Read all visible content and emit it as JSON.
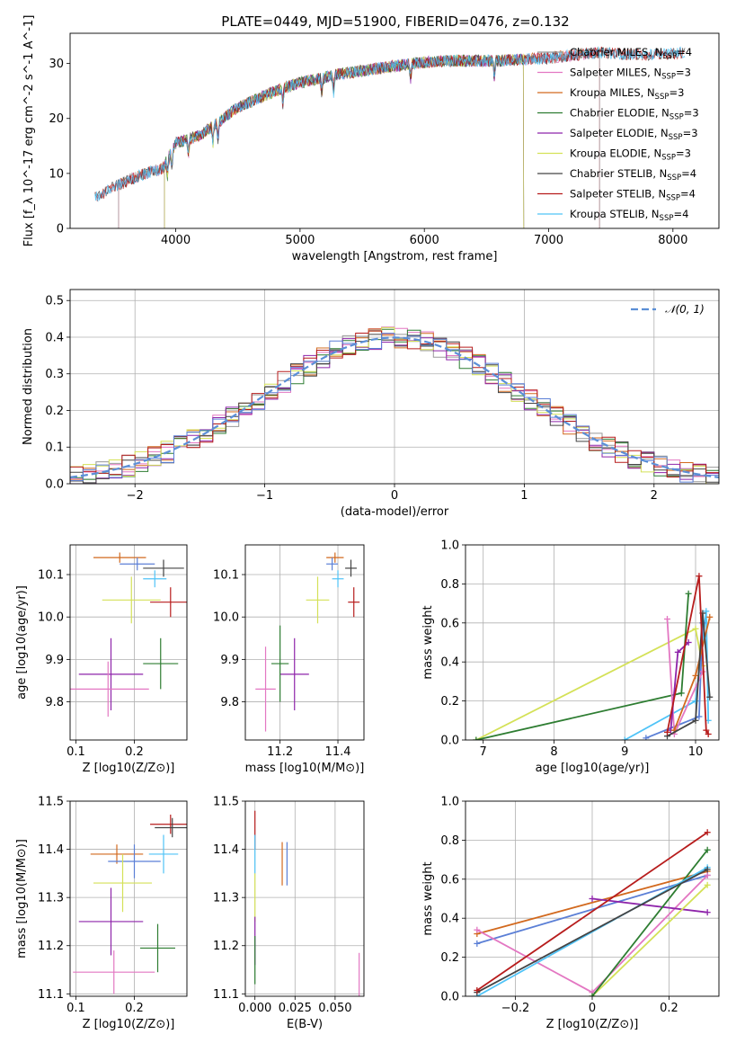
{
  "figure": {
    "title": "PLATE=0449, MJD=51900, FIBERID=0476, z=0.132"
  },
  "colors": {
    "Chabrier MILES": "#999999",
    "Salpeter MILES": "#e377c2",
    "Kroupa MILES": "#d2691e",
    "Chabrier ELODIE": "#2e7d32",
    "Salpeter ELODIE": "#8e24aa",
    "Kroupa ELODIE": "#d4e157",
    "Chabrier STELIB": "#444444",
    "Salpeter STELIB": "#b71c1c",
    "Kroupa STELIB": "#4fc3f7",
    "blue_extra": "#5b7fd6",
    "gaussian": "#5b8fd6"
  },
  "chart_data": [
    {
      "id": "spectrum",
      "type": "line",
      "title": "PLATE=0449, MJD=51900, FIBERID=0476, z=0.132",
      "xlabel": "wavelength [Angstrom, rest frame]",
      "ylabel": "Flux [f_λ 10^-17 erg cm^-2 s^-1 A^-1]",
      "xlim": [
        3150,
        8370
      ],
      "ylim": [
        0,
        35.5
      ],
      "xticks": [
        4000,
        5000,
        6000,
        7000,
        8000
      ],
      "yticks": [
        0,
        10,
        20,
        30
      ],
      "grid": false,
      "legend": "top-right",
      "legend_entries": [
        {
          "name": "Chabrier MILES",
          "nssp": 4
        },
        {
          "name": "Salpeter MILES",
          "nssp": 3
        },
        {
          "name": "Kroupa MILES",
          "nssp": 3
        },
        {
          "name": "Chabrier ELODIE",
          "nssp": 3
        },
        {
          "name": "Salpeter ELODIE",
          "nssp": 3
        },
        {
          "name": "Kroupa ELODIE",
          "nssp": 3
        },
        {
          "name": "Chabrier STELIB",
          "nssp": 4
        },
        {
          "name": "Salpeter STELIB",
          "nssp": 4
        },
        {
          "name": "Kroupa STELIB",
          "nssp": 4
        }
      ],
      "continuum": [
        [
          3350,
          5.5
        ],
        [
          3500,
          7.5
        ],
        [
          3700,
          9.5
        ],
        [
          3900,
          11
        ],
        [
          4000,
          15.5
        ],
        [
          4200,
          17
        ],
        [
          4500,
          22
        ],
        [
          4800,
          25
        ],
        [
          5000,
          26.5
        ],
        [
          5300,
          28
        ],
        [
          5600,
          29
        ],
        [
          5900,
          30
        ],
        [
          6200,
          30.5
        ],
        [
          6600,
          30.5
        ],
        [
          7000,
          31
        ],
        [
          7400,
          32
        ],
        [
          7800,
          31.5
        ],
        [
          8100,
          32
        ]
      ],
      "model_ranges": {
        "Kroupa MILES": [
          3540,
          7410
        ],
        "Salpeter MILES": [
          3540,
          7410
        ],
        "Chabrier MILES": [
          3540,
          7410
        ],
        "Chabrier ELODIE": [
          3910,
          6800
        ],
        "Salpeter ELODIE": [
          3910,
          6800
        ],
        "Kroupa ELODIE": [
          3910,
          6800
        ],
        "Chabrier STELIB": [
          3350,
          8100
        ],
        "Salpeter STELIB": [
          3350,
          8100
        ],
        "Kroupa STELIB": [
          3350,
          8100
        ]
      }
    },
    {
      "id": "residuals",
      "type": "histogram",
      "xlabel": "(data-model)/error",
      "ylabel": "Normed distribution",
      "xlim": [
        -2.5,
        2.5
      ],
      "ylim": [
        0,
        0.53
      ],
      "xticks": [
        -2,
        -1,
        0,
        1,
        2
      ],
      "yticks": [
        0.0,
        0.1,
        0.2,
        0.3,
        0.4,
        0.5
      ],
      "grid": true,
      "legend": "top-right",
      "legend_entries": [
        "𝒩(0, 1)"
      ],
      "bin_width": 0.1,
      "gaussian": {
        "mean": 0,
        "sigma": 1
      }
    },
    {
      "id": "age-vs-Z",
      "type": "scatter-errorbar",
      "xlabel": "Z [log10(Z/Z⊙)]",
      "ylabel": "age [log10(age/yr)]",
      "xlim": [
        0.09,
        0.29
      ],
      "ylim": [
        9.71,
        10.17
      ],
      "xticks": [
        0.1,
        0.2
      ],
      "yticks": [
        9.8,
        9.9,
        10.0,
        10.1
      ],
      "grid": true,
      "points": [
        {
          "model": "Kroupa MILES",
          "x": 0.175,
          "y": 10.14,
          "xerr": 0.045,
          "yerr": 0.012
        },
        {
          "model": "blue_extra",
          "x": 0.205,
          "y": 10.125,
          "xerr": 0.03,
          "yerr": 0.015
        },
        {
          "model": "Kroupa STELIB",
          "x": 0.235,
          "y": 10.09,
          "xerr": 0.02,
          "yerr": 0.02
        },
        {
          "model": "Chabrier STELIB",
          "x": 0.25,
          "y": 10.115,
          "xerr": 0.035,
          "yerr": 0.02
        },
        {
          "model": "Salpeter STELIB",
          "x": 0.262,
          "y": 10.035,
          "xerr": 0.035,
          "yerr": 0.035
        },
        {
          "model": "Kroupa ELODIE",
          "x": 0.195,
          "y": 10.04,
          "xerr": 0.05,
          "yerr": 0.055
        },
        {
          "model": "Salpeter ELODIE",
          "x": 0.16,
          "y": 9.865,
          "xerr": 0.055,
          "yerr": 0.085
        },
        {
          "model": "Chabrier ELODIE",
          "x": 0.245,
          "y": 9.89,
          "xerr": 0.03,
          "yerr": 0.06
        },
        {
          "model": "Salpeter MILES",
          "x": 0.155,
          "y": 9.83,
          "xerr": 0.07,
          "yerr": 0.065
        }
      ]
    },
    {
      "id": "age-vs-mass",
      "type": "scatter-errorbar",
      "xlabel": "mass [log10(M/M⊙)]",
      "ylabel": "",
      "xlim": [
        11.08,
        11.49
      ],
      "ylim": [
        9.71,
        10.17
      ],
      "xticks": [
        11.2,
        11.4
      ],
      "yticks": [
        9.8,
        9.9,
        10.0,
        10.1
      ],
      "grid": true,
      "points": [
        {
          "model": "Kroupa MILES",
          "x": 11.39,
          "y": 10.14,
          "xerr": 0.03,
          "yerr": 0.012
        },
        {
          "model": "blue_extra",
          "x": 11.38,
          "y": 10.125,
          "xerr": 0.02,
          "yerr": 0.015
        },
        {
          "model": "Kroupa STELIB",
          "x": 11.4,
          "y": 10.09,
          "xerr": 0.02,
          "yerr": 0.02
        },
        {
          "model": "Chabrier STELIB",
          "x": 11.445,
          "y": 10.115,
          "xerr": 0.02,
          "yerr": 0.02
        },
        {
          "model": "Salpeter STELIB",
          "x": 11.455,
          "y": 10.035,
          "xerr": 0.02,
          "yerr": 0.035
        },
        {
          "model": "Kroupa ELODIE",
          "x": 11.33,
          "y": 10.04,
          "xerr": 0.04,
          "yerr": 0.055
        },
        {
          "model": "Salpeter ELODIE",
          "x": 11.25,
          "y": 9.865,
          "xerr": 0.05,
          "yerr": 0.085
        },
        {
          "model": "Chabrier ELODIE",
          "x": 11.2,
          "y": 9.89,
          "xerr": 0.03,
          "yerr": 0.09
        },
        {
          "model": "Salpeter MILES",
          "x": 11.15,
          "y": 9.83,
          "xerr": 0.035,
          "yerr": 0.1
        }
      ]
    },
    {
      "id": "weight-vs-age",
      "type": "line",
      "xlabel": "age [log10(age/yr)]",
      "ylabel": "mass weight",
      "xlim": [
        6.75,
        10.33
      ],
      "ylim": [
        0,
        1.0
      ],
      "xticks": [
        7,
        8,
        9,
        10
      ],
      "yticks": [
        0.0,
        0.2,
        0.4,
        0.6,
        0.8,
        1.0
      ],
      "grid": true,
      "series": [
        {
          "model": "Kroupa ELODIE",
          "points": [
            [
              6.9,
              0.0
            ],
            [
              10.0,
              0.57
            ],
            [
              10.1,
              0.38
            ]
          ]
        },
        {
          "model": "Chabrier ELODIE",
          "points": [
            [
              6.9,
              0.0
            ],
            [
              9.8,
              0.24
            ],
            [
              9.9,
              0.75
            ]
          ]
        },
        {
          "model": "Kroupa STELIB",
          "points": [
            [
              9.0,
              0.0
            ],
            [
              10.0,
              0.2
            ],
            [
              10.15,
              0.66
            ],
            [
              10.18,
              0.1
            ]
          ]
        },
        {
          "model": "blue_extra",
          "points": [
            [
              9.3,
              0.01
            ],
            [
              10.05,
              0.12
            ],
            [
              10.1,
              0.6
            ]
          ]
        },
        {
          "model": "Salpeter MILES",
          "points": [
            [
              9.6,
              0.62
            ],
            [
              9.7,
              0.03
            ],
            [
              10.1,
              0.35
            ]
          ]
        },
        {
          "model": "Salpeter ELODIE",
          "points": [
            [
              9.65,
              0.05
            ],
            [
              9.75,
              0.45
            ],
            [
              9.9,
              0.5
            ]
          ]
        },
        {
          "model": "Kroupa MILES",
          "points": [
            [
              9.7,
              0.05
            ],
            [
              10.0,
              0.33
            ],
            [
              10.2,
              0.63
            ]
          ]
        },
        {
          "model": "Chabrier STELIB",
          "points": [
            [
              9.6,
              0.02
            ],
            [
              10.0,
              0.1
            ],
            [
              10.1,
              0.65
            ],
            [
              10.2,
              0.22
            ]
          ]
        },
        {
          "model": "Salpeter STELIB",
          "points": [
            [
              9.6,
              0.04
            ],
            [
              10.05,
              0.84
            ],
            [
              10.15,
              0.05
            ],
            [
              10.18,
              0.03
            ]
          ]
        }
      ]
    },
    {
      "id": "mass-vs-Z",
      "type": "scatter-errorbar",
      "xlabel": "Z [log10(Z/Z⊙)]",
      "ylabel": "mass [log10(M/M⊙)]",
      "xlim": [
        0.09,
        0.29
      ],
      "ylim": [
        11.095,
        11.5
      ],
      "xticks": [
        0.1,
        0.2
      ],
      "yticks": [
        11.1,
        11.2,
        11.3,
        11.4,
        11.5
      ],
      "grid": true,
      "points": [
        {
          "model": "Salpeter STELIB",
          "x": 0.262,
          "y": 11.452,
          "xerr": 0.035,
          "yerr": 0.02
        },
        {
          "model": "Chabrier STELIB",
          "x": 0.265,
          "y": 11.445,
          "xerr": 0.03,
          "yerr": 0.02
        },
        {
          "model": "Kroupa STELIB",
          "x": 0.25,
          "y": 11.39,
          "xerr": 0.025,
          "yerr": 0.04
        },
        {
          "model": "Kroupa MILES",
          "x": 0.17,
          "y": 11.39,
          "xerr": 0.045,
          "yerr": 0.02
        },
        {
          "model": "blue_extra",
          "x": 0.2,
          "y": 11.375,
          "xerr": 0.045,
          "yerr": 0.035
        },
        {
          "model": "Kroupa ELODIE",
          "x": 0.18,
          "y": 11.33,
          "xerr": 0.05,
          "yerr": 0.06
        },
        {
          "model": "Salpeter ELODIE",
          "x": 0.16,
          "y": 11.25,
          "xerr": 0.055,
          "yerr": 0.07
        },
        {
          "model": "Chabrier ELODIE",
          "x": 0.24,
          "y": 11.195,
          "xerr": 0.03,
          "yerr": 0.05
        },
        {
          "model": "Salpeter MILES",
          "x": 0.165,
          "y": 11.145,
          "xerr": 0.07,
          "yerr": 0.045
        }
      ]
    },
    {
      "id": "mass-vs-ebv",
      "type": "scatter-errorbar",
      "xlabel": "E(B-V)",
      "ylabel": "",
      "xlim": [
        -0.006,
        0.068
      ],
      "ylim": [
        11.095,
        11.5
      ],
      "xticks": [
        0.0,
        0.025,
        0.05
      ],
      "yticks": [
        11.1,
        11.2,
        11.3,
        11.4,
        11.5
      ],
      "grid": true,
      "points": [
        {
          "model": "Salpeter STELIB",
          "x": 0.0,
          "y": 11.44,
          "xerr": 0,
          "yerr": 0.04
        },
        {
          "model": "Kroupa STELIB",
          "x": 0.0,
          "y": 11.39,
          "xerr": 0,
          "yerr": 0.04
        },
        {
          "model": "Kroupa ELODIE",
          "x": 0.0,
          "y": 11.3,
          "xerr": 0,
          "yerr": 0.05
        },
        {
          "model": "Salpeter ELODIE",
          "x": 0.0,
          "y": 11.21,
          "xerr": 0,
          "yerr": 0.05
        },
        {
          "model": "Chabrier ELODIE",
          "x": 0.0,
          "y": 11.17,
          "xerr": 0,
          "yerr": 0.05
        },
        {
          "model": "Kroupa MILES",
          "x": 0.017,
          "y": 11.37,
          "xerr": 0,
          "yerr": 0.045
        },
        {
          "model": "blue_extra",
          "x": 0.02,
          "y": 11.37,
          "xerr": 0,
          "yerr": 0.045
        },
        {
          "model": "Salpeter MILES",
          "x": 0.065,
          "y": 11.14,
          "xerr": 0,
          "yerr": 0.045
        }
      ]
    },
    {
      "id": "weight-vs-Z",
      "type": "line",
      "xlabel": "Z [log10(Z/Z⊙)]",
      "ylabel": "mass weight",
      "xlim": [
        -0.33,
        0.33
      ],
      "ylim": [
        0,
        1.0
      ],
      "xticks": [
        -0.2,
        0.0,
        0.2
      ],
      "yticks": [
        0.0,
        0.2,
        0.4,
        0.6,
        0.8,
        1.0
      ],
      "grid": true,
      "series": [
        {
          "model": "Kroupa MILES",
          "points": [
            [
              -0.3,
              0.32
            ],
            [
              0.3,
              0.64
            ]
          ]
        },
        {
          "model": "blue_extra",
          "points": [
            [
              -0.3,
              0.27
            ],
            [
              0.3,
              0.62
            ]
          ]
        },
        {
          "model": "Salpeter MILES",
          "points": [
            [
              -0.3,
              0.34
            ],
            [
              0.0,
              0.02
            ],
            [
              0.3,
              0.62
            ]
          ]
        },
        {
          "model": "Salpeter ELODIE",
          "points": [
            [
              0.0,
              0.5
            ],
            [
              0.3,
              0.43
            ]
          ]
        },
        {
          "model": "Kroupa ELODIE",
          "points": [
            [
              0.0,
              0.0
            ],
            [
              0.3,
              0.57
            ]
          ]
        },
        {
          "model": "Chabrier ELODIE",
          "points": [
            [
              0.0,
              0.0
            ],
            [
              0.3,
              0.75
            ]
          ]
        },
        {
          "model": "Kroupa STELIB",
          "points": [
            [
              -0.3,
              0.0
            ],
            [
              0.3,
              0.66
            ]
          ]
        },
        {
          "model": "Chabrier STELIB",
          "points": [
            [
              -0.3,
              0.02
            ],
            [
              0.3,
              0.65
            ]
          ]
        },
        {
          "model": "Salpeter STELIB",
          "points": [
            [
              -0.3,
              0.03
            ],
            [
              0.3,
              0.84
            ]
          ]
        }
      ]
    }
  ]
}
